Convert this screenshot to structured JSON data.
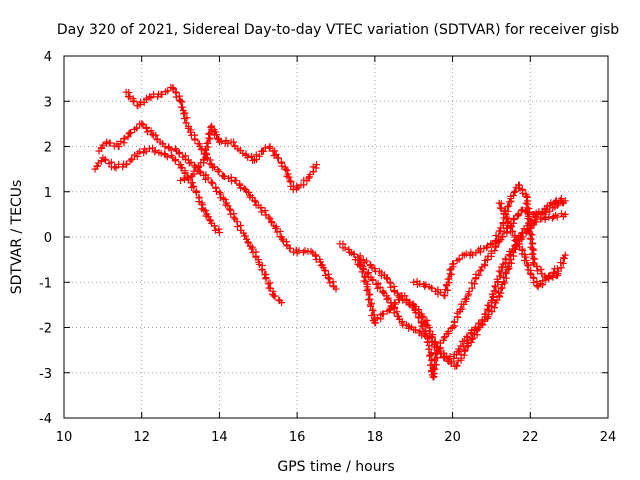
{
  "chart_data": {
    "type": "scatter",
    "title": "Day 320 of 2021, Sidereal Day-to-day VTEC variation (SDTVAR) for receiver gisb",
    "xlabel": "GPS time / hours",
    "ylabel": "SDTVAR / TECUs",
    "xlim": [
      10,
      24
    ],
    "ylim": [
      -4,
      4
    ],
    "xticks": [
      10,
      12,
      14,
      16,
      18,
      20,
      22,
      24
    ],
    "yticks": [
      -4,
      -3,
      -2,
      -1,
      0,
      1,
      2,
      3,
      4
    ],
    "grid": true,
    "marker": "+",
    "color": "#ff0000",
    "series": [
      {
        "name": "s1",
        "x": [
          11.6,
          11.9,
          12.2,
          12.5,
          12.8,
          13.0,
          13.2,
          13.5,
          13.8,
          14.1,
          14.4,
          14.7,
          15.0,
          15.3,
          15.6,
          15.8,
          16.0,
          16.2,
          16.4,
          16.6,
          16.8,
          17.0
        ],
        "y": [
          3.2,
          2.9,
          3.1,
          3.15,
          3.3,
          3.0,
          2.4,
          2.0,
          1.6,
          1.35,
          1.25,
          1.0,
          0.7,
          0.4,
          0.0,
          -0.25,
          -0.35,
          -0.3,
          -0.35,
          -0.55,
          -0.9,
          -1.15
        ]
      },
      {
        "name": "s2",
        "x": [
          10.9,
          11.1,
          11.4,
          11.7,
          12.0,
          12.3,
          12.6,
          12.9,
          13.2,
          13.5,
          13.8,
          14.1,
          14.4,
          14.7,
          15.0,
          15.2,
          15.4,
          15.6
        ],
        "y": [
          1.9,
          2.1,
          2.0,
          2.3,
          2.5,
          2.25,
          2.0,
          1.9,
          1.7,
          1.45,
          1.2,
          0.85,
          0.4,
          -0.05,
          -0.5,
          -0.9,
          -1.3,
          -1.45
        ]
      },
      {
        "name": "s3",
        "x": [
          10.8,
          11.0,
          11.3,
          11.6,
          11.9,
          12.2,
          12.5,
          12.8,
          13.0,
          13.2,
          13.4,
          13.6,
          13.8,
          14.0
        ],
        "y": [
          1.5,
          1.75,
          1.55,
          1.6,
          1.85,
          1.95,
          1.85,
          1.75,
          1.6,
          1.3,
          1.0,
          0.6,
          0.3,
          0.1
        ]
      },
      {
        "name": "s4",
        "x": [
          13.0,
          13.3,
          13.6,
          13.8,
          14.0,
          14.3,
          14.6,
          14.9,
          15.1,
          15.3,
          15.5,
          15.7,
          15.9,
          16.1,
          16.3,
          16.5
        ],
        "y": [
          1.25,
          1.35,
          1.7,
          2.45,
          2.1,
          2.1,
          1.85,
          1.7,
          1.9,
          2.0,
          1.75,
          1.5,
          1.05,
          1.15,
          1.3,
          1.6
        ]
      },
      {
        "name": "s5",
        "x": [
          17.1,
          17.4,
          17.7,
          18.0,
          18.3,
          18.6,
          18.9,
          19.2,
          19.4,
          19.6,
          19.9,
          20.1,
          20.3,
          20.6,
          20.9,
          21.2,
          21.5,
          21.7,
          22.0,
          22.3,
          22.6,
          22.9
        ],
        "y": [
          -0.15,
          -0.35,
          -0.5,
          -0.7,
          -0.9,
          -1.3,
          -1.5,
          -1.7,
          -2.0,
          -2.5,
          -2.7,
          -2.6,
          -2.3,
          -2.0,
          -1.8,
          -1.3,
          -0.5,
          0.0,
          0.3,
          0.4,
          0.45,
          0.5
        ]
      },
      {
        "name": "s6",
        "x": [
          17.6,
          17.8,
          18.0,
          18.2,
          18.4,
          18.7,
          19.0,
          19.2,
          19.4,
          19.5,
          19.6,
          19.8,
          20.0,
          20.2,
          20.4,
          20.6,
          20.9,
          21.2,
          21.5,
          21.8,
          22.1,
          22.4,
          22.7,
          22.9
        ],
        "y": [
          -0.5,
          -1.1,
          -1.9,
          -1.7,
          -1.6,
          -1.3,
          -1.5,
          -1.9,
          -2.4,
          -3.1,
          -2.5,
          -2.2,
          -2.0,
          -1.6,
          -1.3,
          -0.9,
          -0.5,
          -0.1,
          0.3,
          0.6,
          0.5,
          0.55,
          0.7,
          0.8
        ]
      },
      {
        "name": "s7",
        "x": [
          17.5,
          17.9,
          18.3,
          18.7,
          19.0,
          19.4,
          19.6,
          19.9,
          20.1,
          20.4,
          20.7,
          21.0,
          21.3,
          21.6,
          21.9,
          22.2,
          22.5,
          22.8
        ],
        "y": [
          -0.5,
          -0.9,
          -1.3,
          -1.9,
          -2.05,
          -2.2,
          -2.45,
          -2.75,
          -2.85,
          -2.4,
          -2.0,
          -1.4,
          -0.6,
          -0.2,
          0.1,
          0.5,
          0.7,
          0.85
        ]
      },
      {
        "name": "s8",
        "x": [
          19.0,
          19.4,
          19.8,
          20.0,
          20.3,
          20.6,
          20.9,
          21.1,
          21.3,
          21.5,
          21.7,
          21.9,
          22.1,
          22.4,
          22.7,
          22.9
        ],
        "y": [
          -1.0,
          -1.1,
          -1.3,
          -0.6,
          -0.4,
          -0.35,
          -0.2,
          -0.1,
          0.3,
          0.85,
          1.15,
          0.9,
          -0.6,
          -0.9,
          -0.85,
          -0.4
        ]
      },
      {
        "name": "s9",
        "x": [
          21.2,
          21.4,
          21.6,
          21.8,
          22.0,
          22.2,
          22.4,
          22.7
        ],
        "y": [
          0.75,
          0.4,
          0.0,
          -0.3,
          -0.8,
          -1.1,
          -0.95,
          -0.7
        ]
      }
    ]
  }
}
